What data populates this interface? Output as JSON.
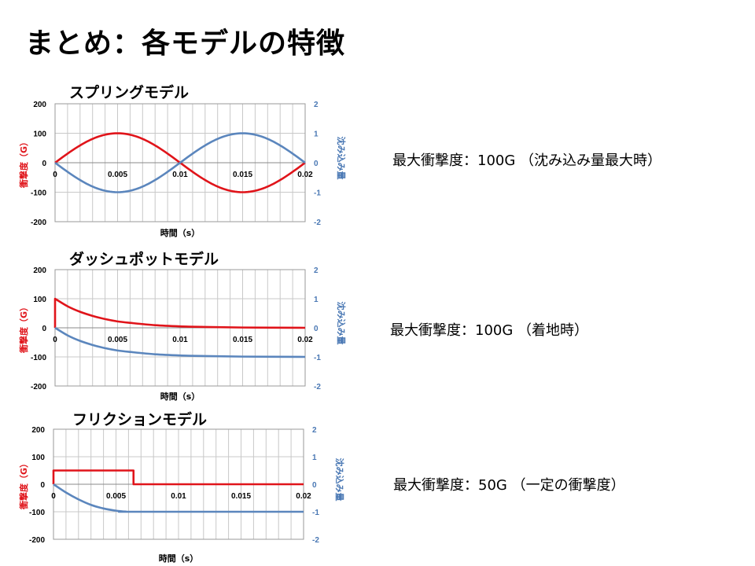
{
  "page": {
    "title": "まとめ：各モデルの特徴"
  },
  "colors": {
    "impact": "#e0141a",
    "sink": "#5b86bd",
    "grid": "#c8c8c8",
    "frame": "#9a9a9a",
    "axis_right": "#4a78b4"
  },
  "panels": [
    {
      "title": "スプリングモデル",
      "summary": "最大衝撃度：100G （沈み込み量最大時）"
    },
    {
      "title": "ダッシュポットモデル",
      "summary": "最大衝撃度：100G （着地時）"
    },
    {
      "title": "フリクションモデル",
      "summary": "最大衝撃度：50G （一定の衝撃度）"
    }
  ],
  "chart_data": [
    {
      "type": "line",
      "title": "スプリングモデル",
      "xlabel": "時間（s）",
      "ylabel": "衝撃度（G）",
      "y2label": "沈み込み量",
      "xlim": [
        0,
        0.02
      ],
      "ylim": [
        -200,
        200
      ],
      "y2lim": [
        -2,
        2
      ],
      "x_ticks": [
        "0",
        "0.005",
        "0.01",
        "0.015",
        "0.02"
      ],
      "y_ticks": [
        "200",
        "100",
        "0",
        "-100",
        "-200"
      ],
      "y2_ticks": [
        "2",
        "1",
        "0",
        "-1",
        "-2"
      ],
      "grid": true,
      "series": [
        {
          "axis": "left",
          "color": "impact",
          "x": [
            0,
            0.0025,
            0.005,
            0.0075,
            0.01,
            0.0125,
            0.015,
            0.0175,
            0.02
          ],
          "y": [
            0,
            70.7,
            100,
            70.7,
            0,
            -70.7,
            -100,
            -70.7,
            0
          ]
        },
        {
          "axis": "right",
          "color": "sink",
          "x": [
            0,
            0.0025,
            0.005,
            0.0075,
            0.01,
            0.0125,
            0.015,
            0.0175,
            0.02
          ],
          "y": [
            0,
            -0.707,
            -1,
            -0.707,
            0,
            0.707,
            1,
            0.707,
            0
          ]
        }
      ]
    },
    {
      "type": "line",
      "title": "ダッシュポットモデル",
      "xlabel": "時間（s）",
      "ylabel": "衝撃度（G）",
      "y2label": "沈み込み量",
      "xlim": [
        0,
        0.02
      ],
      "ylim": [
        -200,
        200
      ],
      "y2lim": [
        -2,
        2
      ],
      "x_ticks": [
        "0",
        "0.005",
        "0.01",
        "0.015",
        "0.02"
      ],
      "y_ticks": [
        "200",
        "100",
        "0",
        "-100",
        "-200"
      ],
      "y2_ticks": [
        "2",
        "1",
        "0",
        "-1",
        "-2"
      ],
      "grid": true,
      "series": [
        {
          "axis": "left",
          "color": "impact",
          "x": [
            0,
            0,
            0.001,
            0.002,
            0.003,
            0.004,
            0.005,
            0.006,
            0.008,
            0.01,
            0.012,
            0.015,
            0.02
          ],
          "y": [
            0,
            100,
            74,
            55,
            41,
            30,
            22,
            17,
            9,
            5,
            3,
            1,
            0
          ]
        },
        {
          "axis": "right",
          "color": "sink",
          "x": [
            0,
            0.001,
            0.002,
            0.003,
            0.004,
            0.005,
            0.006,
            0.008,
            0.01,
            0.012,
            0.015,
            0.02
          ],
          "y": [
            0,
            -0.26,
            -0.45,
            -0.59,
            -0.7,
            -0.78,
            -0.83,
            -0.91,
            -0.95,
            -0.97,
            -0.99,
            -1
          ]
        }
      ]
    },
    {
      "type": "line",
      "title": "フリクションモデル",
      "xlabel": "時間（s）",
      "ylabel": "衝撃度（G）",
      "y2label": "沈み込み量",
      "xlim": [
        0,
        0.02
      ],
      "ylim": [
        -200,
        200
      ],
      "y2lim": [
        -2,
        2
      ],
      "x_ticks": [
        "0",
        "0.005",
        "0.01",
        "0.015",
        "0.02"
      ],
      "y_ticks": [
        "200",
        "100",
        "0",
        "-100",
        "-200"
      ],
      "y2_ticks": [
        "2",
        "1",
        "0",
        "-1",
        "-2"
      ],
      "grid": true,
      "series": [
        {
          "axis": "left",
          "color": "impact",
          "x": [
            0,
            0,
            0.0064,
            0.0064,
            0.02
          ],
          "y": [
            0,
            50,
            50,
            0,
            0
          ]
        },
        {
          "axis": "right",
          "color": "sink",
          "x": [
            0,
            0.001,
            0.002,
            0.003,
            0.004,
            0.005,
            0.0058,
            0.0064,
            0.02
          ],
          "y": [
            0,
            -0.3,
            -0.55,
            -0.75,
            -0.88,
            -0.96,
            -0.995,
            -1,
            -1
          ]
        }
      ]
    }
  ]
}
